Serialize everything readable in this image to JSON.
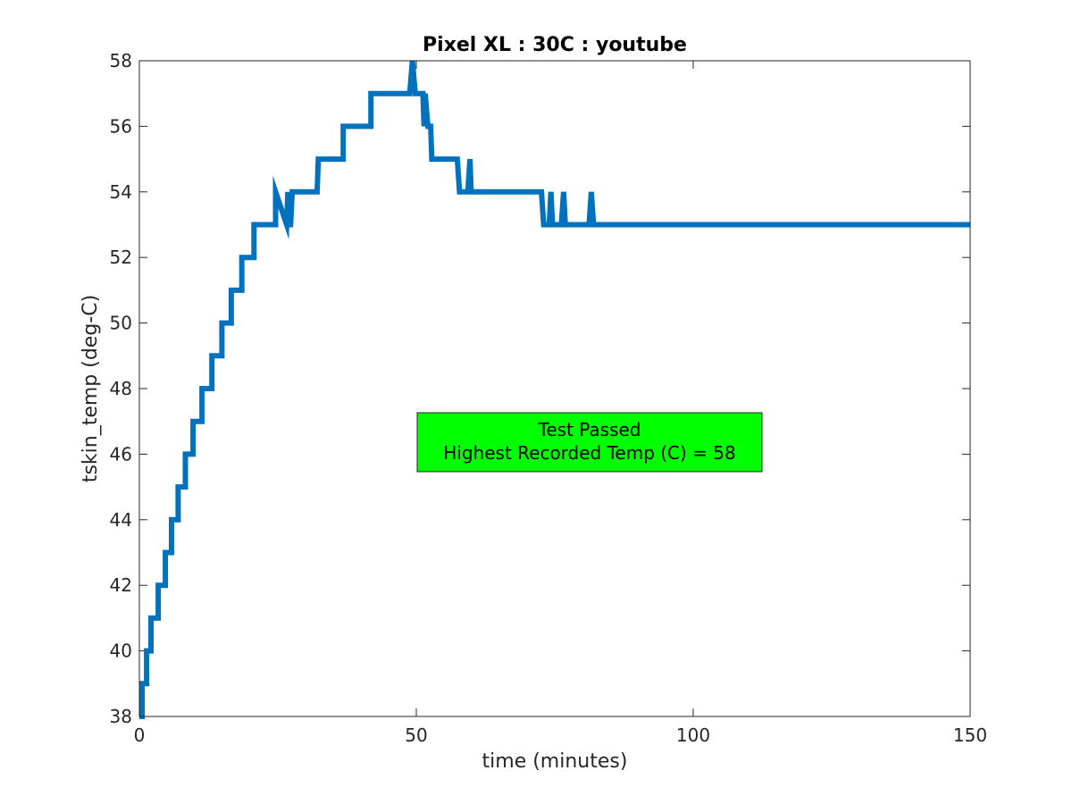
{
  "chart_data": {
    "type": "line",
    "title": "Pixel XL : 30C : youtube",
    "xlabel": "time (minutes)",
    "ylabel": "tskin_temp (deg-C)",
    "xlim": [
      0,
      150
    ],
    "ylim": [
      38,
      58
    ],
    "xticks": [
      0,
      50,
      100,
      150
    ],
    "yticks": [
      38,
      40,
      42,
      44,
      46,
      48,
      50,
      52,
      54,
      56,
      58
    ],
    "grid": false,
    "series": [
      {
        "color": "#0072BD",
        "x": [
          0,
          0.5,
          0.5,
          1.3,
          1.3,
          2.1,
          2.1,
          3.4,
          3.4,
          4.7,
          4.7,
          5.8,
          5.8,
          7.0,
          7.0,
          8.3,
          8.3,
          9.7,
          9.7,
          11.3,
          11.3,
          13.1,
          13.1,
          14.9,
          14.9,
          16.6,
          16.6,
          18.5,
          18.5,
          20.7,
          20.7,
          23.2,
          23.2,
          24.6,
          24.6,
          26.6,
          26.8,
          27.0,
          27.3,
          27.6,
          27.8,
          32.1,
          32.3,
          32.5,
          32.7,
          36.8,
          36.8,
          41.8,
          41.8,
          48.8,
          49.3,
          49.8,
          50.5,
          51.2,
          51.4,
          51.6,
          52.1,
          52.6,
          52.8,
          57.4,
          57.8,
          59.3,
          59.7,
          59.9,
          72.6,
          73.0,
          74.0,
          74.3,
          74.6,
          76.2,
          76.6,
          76.9,
          81.2,
          81.6,
          82.0,
          150
        ],
        "y": [
          38,
          38,
          39,
          39,
          40,
          40,
          41,
          41,
          42,
          42,
          43,
          43,
          44,
          44,
          45,
          45,
          46,
          46,
          47,
          47,
          48,
          48,
          49,
          49,
          50,
          50,
          51,
          51,
          52,
          52,
          53,
          53,
          53,
          53,
          54,
          53,
          54,
          53,
          53,
          54,
          54,
          54,
          55,
          55,
          55,
          55,
          56,
          56,
          57,
          57,
          58,
          57,
          57,
          57,
          56,
          57,
          56,
          56,
          55,
          55,
          54,
          54,
          55,
          54,
          54,
          53,
          53,
          54,
          53,
          53,
          54,
          53,
          53,
          54,
          53,
          53
        ]
      }
    ],
    "annotation": {
      "lines": [
        "Test Passed",
        "Highest Recorded Temp (C) = 58"
      ],
      "background": "#00FF00",
      "border": "#262626"
    }
  }
}
